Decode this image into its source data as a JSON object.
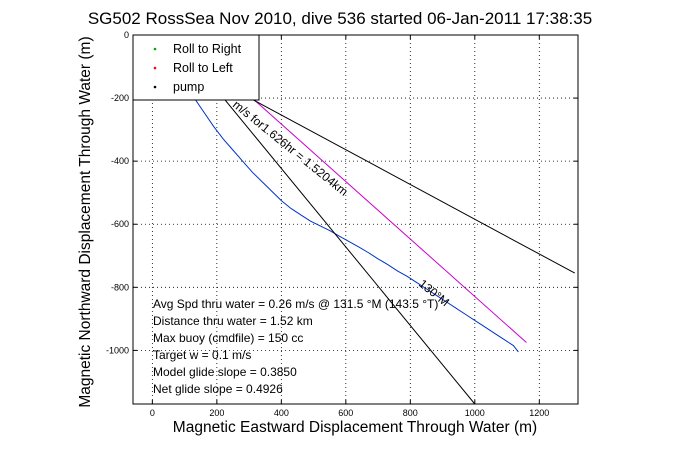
{
  "chart_data": {
    "type": "line",
    "title": "SG502 RossSea Nov 2010, dive 536 started 06-Jan-2011 17:38:35",
    "xlabel": "Magnetic Eastward Displacement Through Water (m)",
    "ylabel": "Magnetic Northward Displacement Through Water (m)",
    "xlim": [
      -60,
      1320
    ],
    "ylim": [
      -1170,
      0
    ],
    "grid": true,
    "xticks": [
      0,
      200,
      400,
      600,
      800,
      1000,
      1200
    ],
    "yticks": [
      0,
      -200,
      -400,
      -600,
      -800,
      -1000
    ],
    "legend": {
      "placement": "top-left",
      "entries": [
        {
          "label": "Roll to Right",
          "color": "#00aa00",
          "marker": "dot"
        },
        {
          "label": "Roll to Left",
          "color": "#ff0000",
          "marker": "dot"
        },
        {
          "label": "pump",
          "color": "#000000",
          "marker": "dot"
        }
      ]
    },
    "series": [
      {
        "color": "#0033cc",
        "x": [
          10,
          40,
          70,
          100,
          130,
          160,
          190,
          220,
          250,
          280,
          310,
          340,
          370,
          400,
          430,
          460,
          490,
          520,
          550,
          580,
          610,
          640,
          670,
          700,
          730,
          760,
          790,
          820,
          850,
          880,
          910,
          940,
          970,
          1000,
          1030,
          1060,
          1090,
          1120,
          1135
        ],
        "y": [
          -5,
          -60,
          -115,
          -155,
          -200,
          -245,
          -290,
          -330,
          -365,
          -400,
          -435,
          -465,
          -495,
          -525,
          -550,
          -570,
          -590,
          -605,
          -620,
          -638,
          -655,
          -672,
          -690,
          -710,
          -728,
          -748,
          -765,
          -785,
          -805,
          -825,
          -845,
          -865,
          -885,
          -905,
          -925,
          -945,
          -965,
          -985,
          -1005
        ]
      },
      {
        "color": "#cc00cc",
        "x": [
          90,
          1160
        ],
        "y": [
          0,
          -975
        ]
      },
      {
        "color": "#000000",
        "x": [
          230,
          1310
        ],
        "y": [
          -160,
          -755
        ]
      },
      {
        "color": "#000000",
        "x": [
          60,
          1000
        ],
        "y": [
          0,
          -1170
        ]
      }
    ],
    "annotations": {
      "rotated_label": "m/s for1.626hr = 1.5204km",
      "heading_label": "130°M",
      "stats": [
        "Avg Spd thru water =  0.26 m/s @ 131.5   °M (143.5 °T)",
        "Distance thru water =  1.52 km",
        "Max buoy (cmdfile) = 150 cc",
        "Target w = 0.1 m/s",
        "Model glide slope = 0.3850",
        "Net glide slope = 0.4926"
      ]
    }
  }
}
